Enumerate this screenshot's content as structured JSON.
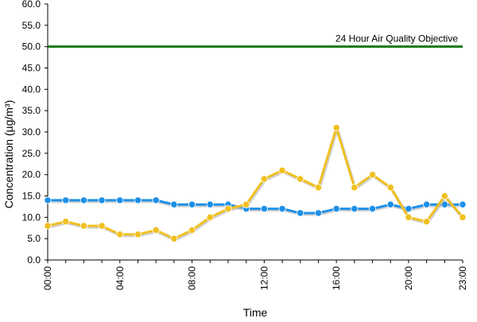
{
  "chart_data": {
    "type": "line",
    "title": "",
    "xlabel": "Time",
    "ylabel": "Concentration (µg/m³)",
    "ylim": [
      0,
      60
    ],
    "y_ticks": [
      "0.0",
      "5.0",
      "10.0",
      "15.0",
      "20.0",
      "25.0",
      "30.0",
      "35.0",
      "40.0",
      "45.0",
      "50.0",
      "55.0",
      "60.0"
    ],
    "x": [
      "00:00",
      "01:00",
      "02:00",
      "03:00",
      "04:00",
      "05:00",
      "06:00",
      "07:00",
      "08:00",
      "09:00",
      "10:00",
      "11:00",
      "12:00",
      "13:00",
      "14:00",
      "15:00",
      "16:00",
      "17:00",
      "18:00",
      "19:00",
      "20:00",
      "21:00",
      "22:00",
      "23:00"
    ],
    "x_tick_labels": [
      "00:00",
      "04:00",
      "08:00",
      "12:00",
      "16:00",
      "20:00",
      "23:00"
    ],
    "grid": false,
    "legend": "none",
    "series": [
      {
        "color": "#1e90e8",
        "values": [
          14,
          14,
          14,
          14,
          14,
          14,
          14,
          13,
          13,
          13,
          13,
          12,
          12,
          12,
          11,
          11,
          12,
          12,
          12,
          13,
          12,
          13,
          13,
          13
        ]
      },
      {
        "color": "#f0c020",
        "values": [
          8,
          9,
          8,
          8,
          6,
          6,
          7,
          5,
          7,
          10,
          12,
          13,
          19,
          21,
          19,
          17,
          31,
          17,
          20,
          17,
          10,
          9,
          15,
          10
        ]
      }
    ],
    "reference_line": {
      "value": 50,
      "label": "24 Hour Air Quality Objective",
      "color": "#1a7a1a"
    }
  }
}
